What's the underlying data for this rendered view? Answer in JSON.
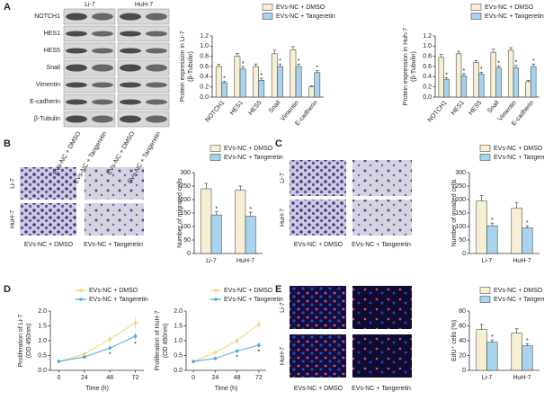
{
  "figure": {
    "panels": [
      "A",
      "B",
      "C",
      "D",
      "E"
    ],
    "blot": {
      "cell_lines": [
        "Li-7",
        "HuH-7"
      ],
      "proteins": [
        "NOTCH1",
        "HES1",
        "HES5",
        "Snail",
        "Vimentin",
        "E-cadherin",
        "β-Tubulin"
      ],
      "lanes": [
        "EVs-NC + DMSO",
        "EVs-NC + Tangeretin"
      ]
    },
    "migration_images": {
      "rows": [
        "Li-7",
        "HuH-7"
      ],
      "columns": [
        "EVs-NC + DMSO",
        "EVs-NC + Tangeretin"
      ]
    },
    "invasion_images": {
      "rows": [
        "Li-7",
        "HuH-7"
      ],
      "columns": [
        "EVs-NC + DMSO",
        "EVs-NC + Tangeretin"
      ]
    },
    "edu_images": {
      "rows": [
        "Li-7",
        "HuH-7"
      ],
      "columns": [
        "EVs-NC + DMSO",
        "EVs-NC + Tangeretin"
      ]
    }
  },
  "chart_data": [
    {
      "type": "bar",
      "ylabel": [
        "Protein expression in Li-7",
        "(β-Tubulin)"
      ],
      "categories": [
        "NOTCH1",
        "HES1",
        "HES5",
        "Snail",
        "Vimentin",
        "E-cadherin"
      ],
      "series": [
        {
          "name": "EVs-NC + DMSO",
          "color": "#f7efd4",
          "values": [
            0.6,
            0.8,
            0.6,
            0.85,
            0.93,
            0.2
          ],
          "errors": [
            0.04,
            0.06,
            0.05,
            0.07,
            0.06,
            0.02
          ]
        },
        {
          "name": "EVs-NC + Tangeretin",
          "color": "#a7d3ee",
          "values": [
            0.28,
            0.55,
            0.33,
            0.6,
            0.6,
            0.48
          ],
          "errors": [
            0.03,
            0.05,
            0.04,
            0.05,
            0.05,
            0.04
          ],
          "annotations": [
            "*",
            "*",
            "*",
            "*",
            "*",
            "*"
          ]
        }
      ],
      "ylim": [
        0,
        1.2
      ],
      "yticks": [
        {
          "value": 0,
          "label": "0.0"
        },
        0.2,
        0.4,
        0.6,
        0.8,
        {
          "value": 1,
          "label": "1.0"
        },
        1.2
      ]
    },
    {
      "type": "bar",
      "ylabel": [
        "Protein expression in Huh-7",
        "(β-Tubulin)"
      ],
      "categories": [
        "NOTCH1",
        "HES1",
        "HES5",
        "Snail",
        "Vimentin",
        "E-cadherin"
      ],
      "series": [
        {
          "name": "EVs-NC + DMSO",
          "color": "#f7efd4",
          "values": [
            0.78,
            0.85,
            0.68,
            0.88,
            0.92,
            0.3
          ],
          "errors": [
            0.06,
            0.05,
            0.04,
            0.06,
            0.05,
            0.03
          ]
        },
        {
          "name": "EVs-NC + Tangeretin",
          "color": "#a7d3ee",
          "values": [
            0.35,
            0.42,
            0.45,
            0.57,
            0.57,
            0.6
          ],
          "errors": [
            0.03,
            0.04,
            0.04,
            0.04,
            0.05,
            0.05
          ],
          "annotations": [
            "*",
            "*",
            "*",
            "*",
            "*",
            "*"
          ]
        }
      ],
      "ylim": [
        0,
        1.2
      ],
      "yticks": [
        {
          "value": 0,
          "label": "0.0"
        },
        0.2,
        0.4,
        0.6,
        0.8,
        {
          "value": 1,
          "label": "1.0"
        },
        1.2
      ]
    },
    {
      "type": "bar",
      "ylabel": [
        "Number of migrated cells"
      ],
      "categories": [
        "Li-7",
        "HuH-7"
      ],
      "series": [
        {
          "name": "EVs-NC + DMSO",
          "color": "#f7efd4",
          "values": [
            240,
            235
          ],
          "errors": [
            20,
            15
          ]
        },
        {
          "name": "EVs-NC + Tangeretin",
          "color": "#a7d3ee",
          "values": [
            143,
            138
          ],
          "errors": [
            12,
            15
          ],
          "annotations": [
            "*",
            "*"
          ]
        }
      ],
      "ylim": [
        0,
        300
      ],
      "yticks": [
        0,
        50,
        100,
        150,
        200,
        250,
        300
      ]
    },
    {
      "type": "bar",
      "ylabel": [
        "Number of invaded cells"
      ],
      "categories": [
        "Li-7",
        "HuH-7"
      ],
      "series": [
        {
          "name": "EVs-NC + DMSO",
          "color": "#f7efd4",
          "values": [
            195,
            168
          ],
          "errors": [
            20,
            20
          ]
        },
        {
          "name": "EVs-NC + Tangeretin",
          "color": "#a7d3ee",
          "values": [
            103,
            95
          ],
          "errors": [
            10,
            8
          ],
          "annotations": [
            "*",
            "*"
          ]
        }
      ],
      "ylim": [
        0,
        300
      ],
      "yticks": [
        0,
        50,
        100,
        150,
        200,
        250,
        300
      ]
    },
    {
      "type": "line",
      "ylabel": [
        "Proliferation of Li-7",
        "(OD 450nm)"
      ],
      "xlabel": "Time (h)",
      "x": [
        0,
        24,
        48,
        72
      ],
      "xlim": [
        -8,
        80
      ],
      "xticks": [
        0,
        24,
        48,
        72
      ],
      "series": [
        {
          "name": "EVs-NC + DMSO",
          "color": "#f3d27e",
          "values": [
            0.3,
            0.55,
            1.05,
            1.6
          ],
          "errors": [
            0.02,
            0.05,
            0.12,
            0.2
          ]
        },
        {
          "name": "EVs-NC + Tangeretin",
          "color": "#4aa8dc",
          "values": [
            0.3,
            0.45,
            0.75,
            1.15
          ],
          "errors": [
            0.02,
            0.04,
            0.08,
            0.12
          ],
          "annotations": [
            null,
            null,
            "*",
            "*"
          ]
        }
      ],
      "ylim": [
        0,
        2
      ],
      "yticks": [
        {
          "value": 0,
          "label": "0.0"
        },
        0.5,
        {
          "value": 1,
          "label": "1.0"
        },
        1.5,
        {
          "value": 2,
          "label": "2.0"
        }
      ]
    },
    {
      "type": "line",
      "ylabel": [
        "Proliferation of HuH-7",
        "(OD 450nm)"
      ],
      "xlabel": "Time (h)",
      "x": [
        0,
        24,
        48,
        72
      ],
      "xlim": [
        -8,
        80
      ],
      "xticks": [
        0,
        24,
        48,
        72
      ],
      "series": [
        {
          "name": "EVs-NC + DMSO",
          "color": "#f3d27e",
          "values": [
            0.3,
            0.6,
            1.0,
            1.55
          ],
          "errors": [
            0.02,
            0.05,
            0.1,
            0.15
          ]
        },
        {
          "name": "EVs-NC + Tangeretin",
          "color": "#4aa8dc",
          "values": [
            0.3,
            0.4,
            0.65,
            0.85
          ],
          "errors": [
            0.02,
            0.03,
            0.06,
            0.08
          ],
          "annotations": [
            null,
            null,
            "*",
            "*"
          ]
        }
      ],
      "ylim": [
        0,
        2
      ],
      "yticks": [
        {
          "value": 0,
          "label": "0.0"
        },
        0.5,
        {
          "value": 1,
          "label": "1.0"
        },
        1.5,
        {
          "value": 2,
          "label": "2.0"
        }
      ]
    },
    {
      "type": "bar",
      "ylabel": [
        "EdU⁺ cells (%)"
      ],
      "categories": [
        "Li-7",
        "HuH-7"
      ],
      "series": [
        {
          "name": "EVs-NC + DMSO",
          "color": "#f7efd4",
          "values": [
            55,
            50
          ],
          "errors": [
            7,
            6
          ]
        },
        {
          "name": "EVs-NC + Tangeretin",
          "color": "#a7d3ee",
          "values": [
            38,
            33
          ],
          "errors": [
            3,
            3
          ],
          "annotations": [
            "*",
            "*"
          ]
        }
      ],
      "ylim": [
        0,
        80
      ],
      "yticks": [
        0,
        20,
        40,
        60,
        80
      ]
    }
  ]
}
